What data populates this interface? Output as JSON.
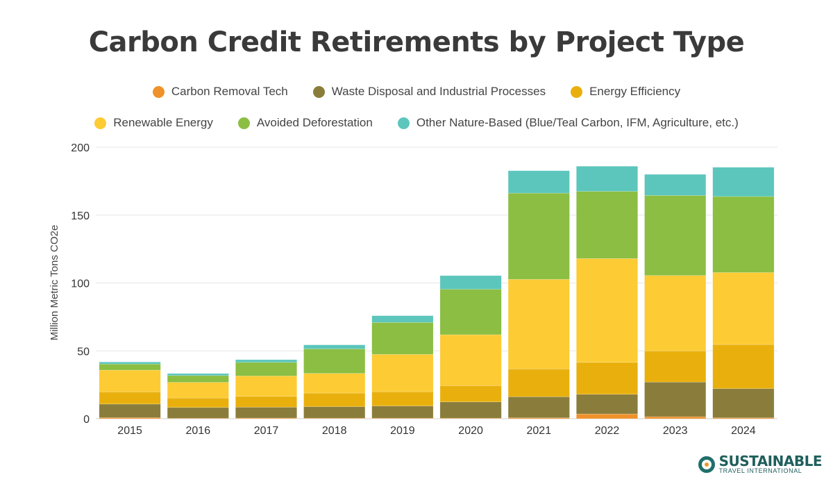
{
  "chart_data": {
    "type": "bar",
    "stacked": true,
    "title": "Carbon Credit Retirements by Project Type",
    "xlabel": "",
    "ylabel": "Million Metric Tons CO2e",
    "ylim": [
      0,
      200
    ],
    "yticks": [
      0,
      50,
      100,
      150,
      200
    ],
    "grid": true,
    "legend_position": "top",
    "categories": [
      "2015",
      "2016",
      "2017",
      "2018",
      "2019",
      "2020",
      "2021",
      "2022",
      "2023",
      "2024"
    ],
    "series": [
      {
        "name": "Carbon Removal Tech",
        "color": "#F0922B",
        "values": [
          0.8,
          0.3,
          0.5,
          0.4,
          0.4,
          0.4,
          0.7,
          3.5,
          1.5,
          0.7
        ]
      },
      {
        "name": "Waste Disposal and Industrial Processes",
        "color": "#8A7D3B",
        "values": [
          10,
          8,
          8,
          8.5,
          9,
          12,
          15.5,
          14.5,
          25.5,
          21.5
        ]
      },
      {
        "name": "Energy Efficiency",
        "color": "#E9B00D",
        "values": [
          9,
          7,
          8,
          10,
          10.5,
          12,
          20.5,
          23.5,
          23,
          32.5
        ]
      },
      {
        "name": "Renewable Energy",
        "color": "#FDCB33",
        "values": [
          16,
          11.5,
          15,
          14.5,
          27.5,
          37.5,
          66,
          76.5,
          55.5,
          53
        ]
      },
      {
        "name": "Avoided Deforestation",
        "color": "#8BBE42",
        "values": [
          4.5,
          5,
          10,
          18,
          23.5,
          33.5,
          63.5,
          49.5,
          59,
          56
        ]
      },
      {
        "name": "Other Nature-Based (Blue/Teal Carbon, IFM, Agriculture, etc.)",
        "color": "#5CC6BC",
        "values": [
          1.5,
          1.5,
          2,
          3,
          5,
          10,
          16.5,
          18.5,
          15.5,
          21.5
        ]
      }
    ]
  },
  "branding": {
    "line1": "SUSTAINABLE",
    "line2": "TRAVEL INTERNATIONAL"
  }
}
